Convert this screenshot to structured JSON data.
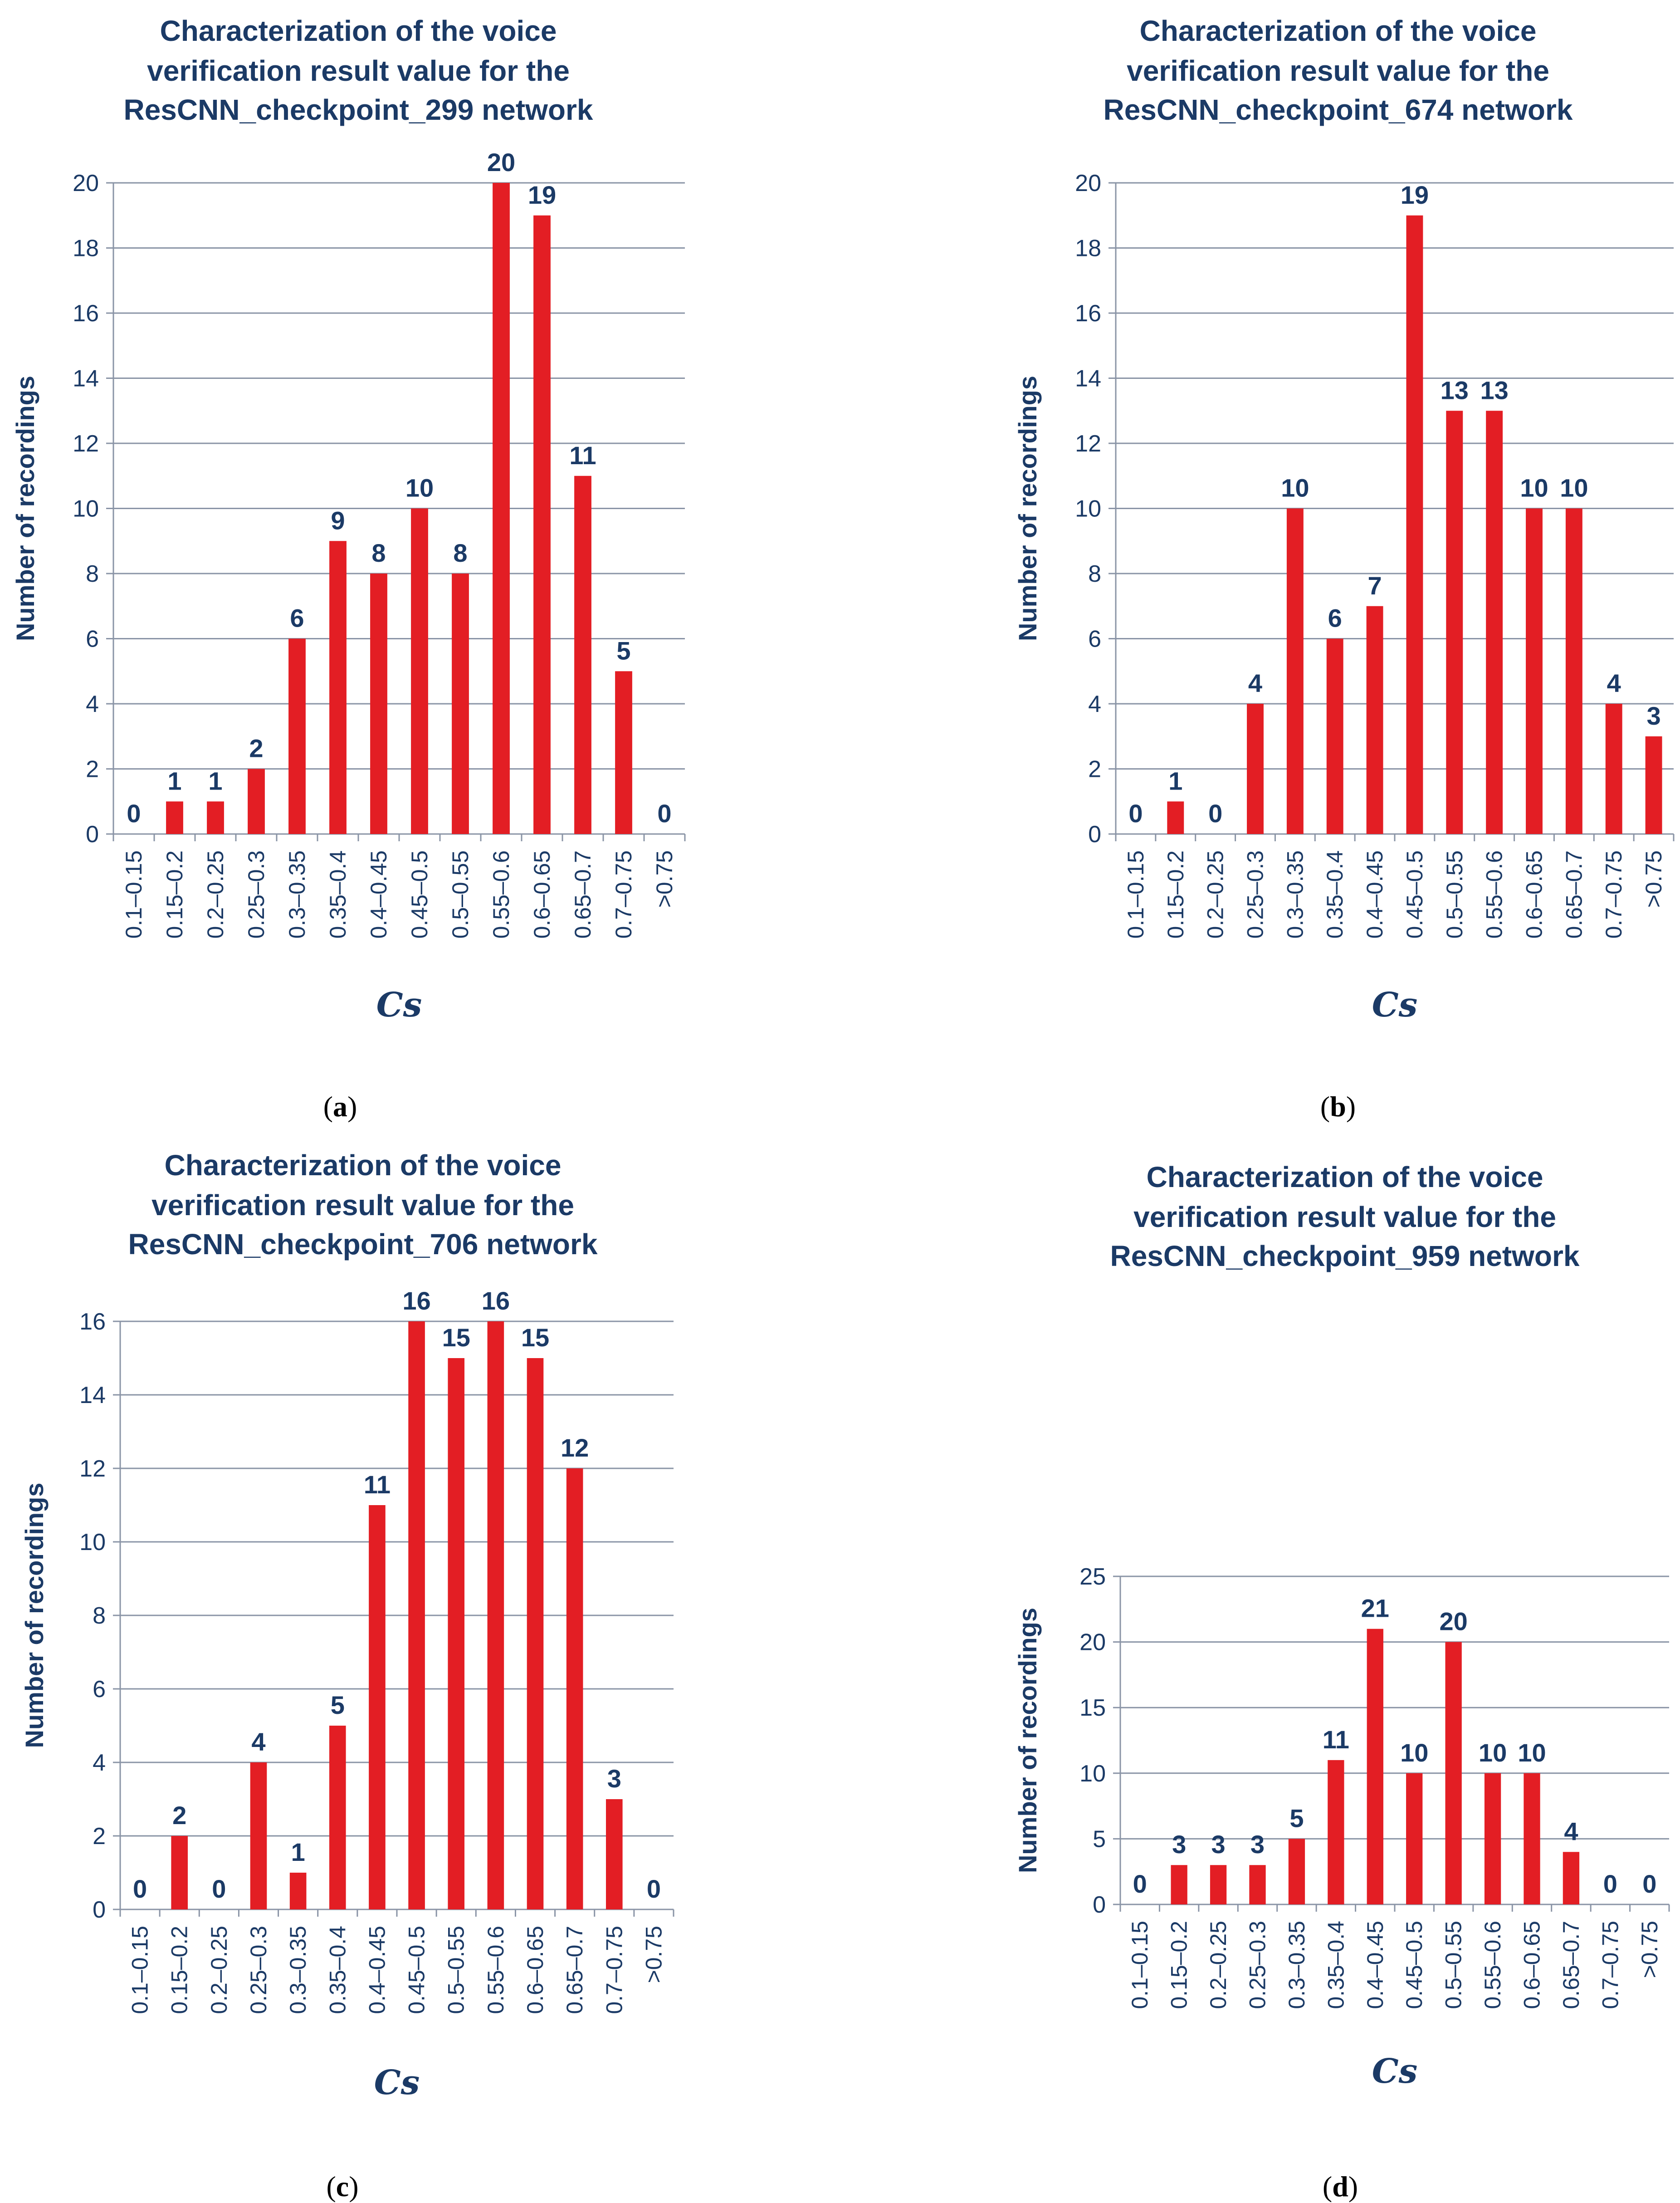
{
  "chart_data": [
    {
      "type": "bar",
      "caption": "(a)",
      "title": [
        "Characterization of the voice",
        "verification result value for the",
        "ResCNN_checkpoint_299 network"
      ],
      "ylabel": "Number of recordings",
      "xlabel": "Cs",
      "ylim": [
        0,
        20
      ],
      "yticks": [
        0,
        2,
        4,
        6,
        8,
        10,
        12,
        14,
        16,
        18,
        20
      ],
      "categories": [
        "0.1–0.15",
        "0.15–0.2",
        "0.2–0.25",
        "0.25–0.3",
        "0.3–0.35",
        "0.35–0.4",
        "0.4–0.45",
        "0.45–0.5",
        "0.5–0.55",
        "0.55–0.6",
        "0.6–0.65",
        "0.65–0.7",
        "0.7–0.75",
        ">0.75"
      ],
      "values": [
        0,
        1,
        1,
        2,
        6,
        9,
        8,
        10,
        8,
        20,
        19,
        11,
        5,
        0
      ],
      "bar_color": "#e31e24"
    },
    {
      "type": "bar",
      "caption": "(b)",
      "title": [
        "Characterization of the voice",
        "verification result value for the",
        "ResCNN_checkpoint_674 network"
      ],
      "ylabel": "Number of recordings",
      "xlabel": "Cs",
      "ylim": [
        0,
        20
      ],
      "yticks": [
        0,
        2,
        4,
        6,
        8,
        10,
        12,
        14,
        16,
        18,
        20
      ],
      "categories": [
        "0.1–0.15",
        "0.15–0.2",
        "0.2–0.25",
        "0.25–0.3",
        "0.3–0.35",
        "0.35–0.4",
        "0.4–0.45",
        "0.45–0.5",
        "0.5–0.55",
        "0.55–0.6",
        "0.6–0.65",
        "0.65–0.7",
        "0.7–0.75",
        ">0.75"
      ],
      "values": [
        0,
        1,
        0,
        4,
        10,
        6,
        7,
        19,
        13,
        13,
        10,
        10,
        4,
        3
      ],
      "bar_color": "#e31e24"
    },
    {
      "type": "bar",
      "caption": "(c)",
      "title": [
        "Characterization of the voice",
        "verification result value for the",
        "ResCNN_checkpoint_706 network"
      ],
      "ylabel": "Number of recordings",
      "xlabel": "Cs",
      "ylim": [
        0,
        16
      ],
      "yticks": [
        0,
        2,
        4,
        6,
        8,
        10,
        12,
        14,
        16
      ],
      "categories": [
        "0.1–0.15",
        "0.15–0.2",
        "0.2–0.25",
        "0.25–0.3",
        "0.3–0.35",
        "0.35–0.4",
        "0.4–0.45",
        "0.45–0.5",
        "0.5–0.55",
        "0.55–0.6",
        "0.6–0.65",
        "0.65–0.7",
        "0.7–0.75",
        ">0.75"
      ],
      "values": [
        0,
        2,
        0,
        4,
        1,
        5,
        11,
        16,
        15,
        16,
        15,
        12,
        3,
        0
      ],
      "bar_color": "#e31e24"
    },
    {
      "type": "bar",
      "caption": "(d)",
      "title": [
        "Characterization of the voice",
        "verification result value for the",
        "ResCNN_checkpoint_959 network"
      ],
      "ylabel": "Number of recordings",
      "xlabel": "Cs",
      "ylim": [
        0,
        25
      ],
      "yticks": [
        0,
        5,
        10,
        15,
        20,
        25
      ],
      "categories": [
        "0.1–0.15",
        "0.15–0.2",
        "0.2–0.25",
        "0.25–0.3",
        "0.3–0.35",
        "0.35–0.4",
        "0.4–0.45",
        "0.45–0.5",
        "0.5–0.55",
        "0.55–0.6",
        "0.6–0.65",
        "0.65–0.7",
        "0.7–0.75",
        ">0.75"
      ],
      "values": [
        0,
        3,
        3,
        3,
        5,
        11,
        21,
        10,
        20,
        10,
        10,
        4,
        0,
        0
      ],
      "bar_color": "#e31e24"
    }
  ]
}
